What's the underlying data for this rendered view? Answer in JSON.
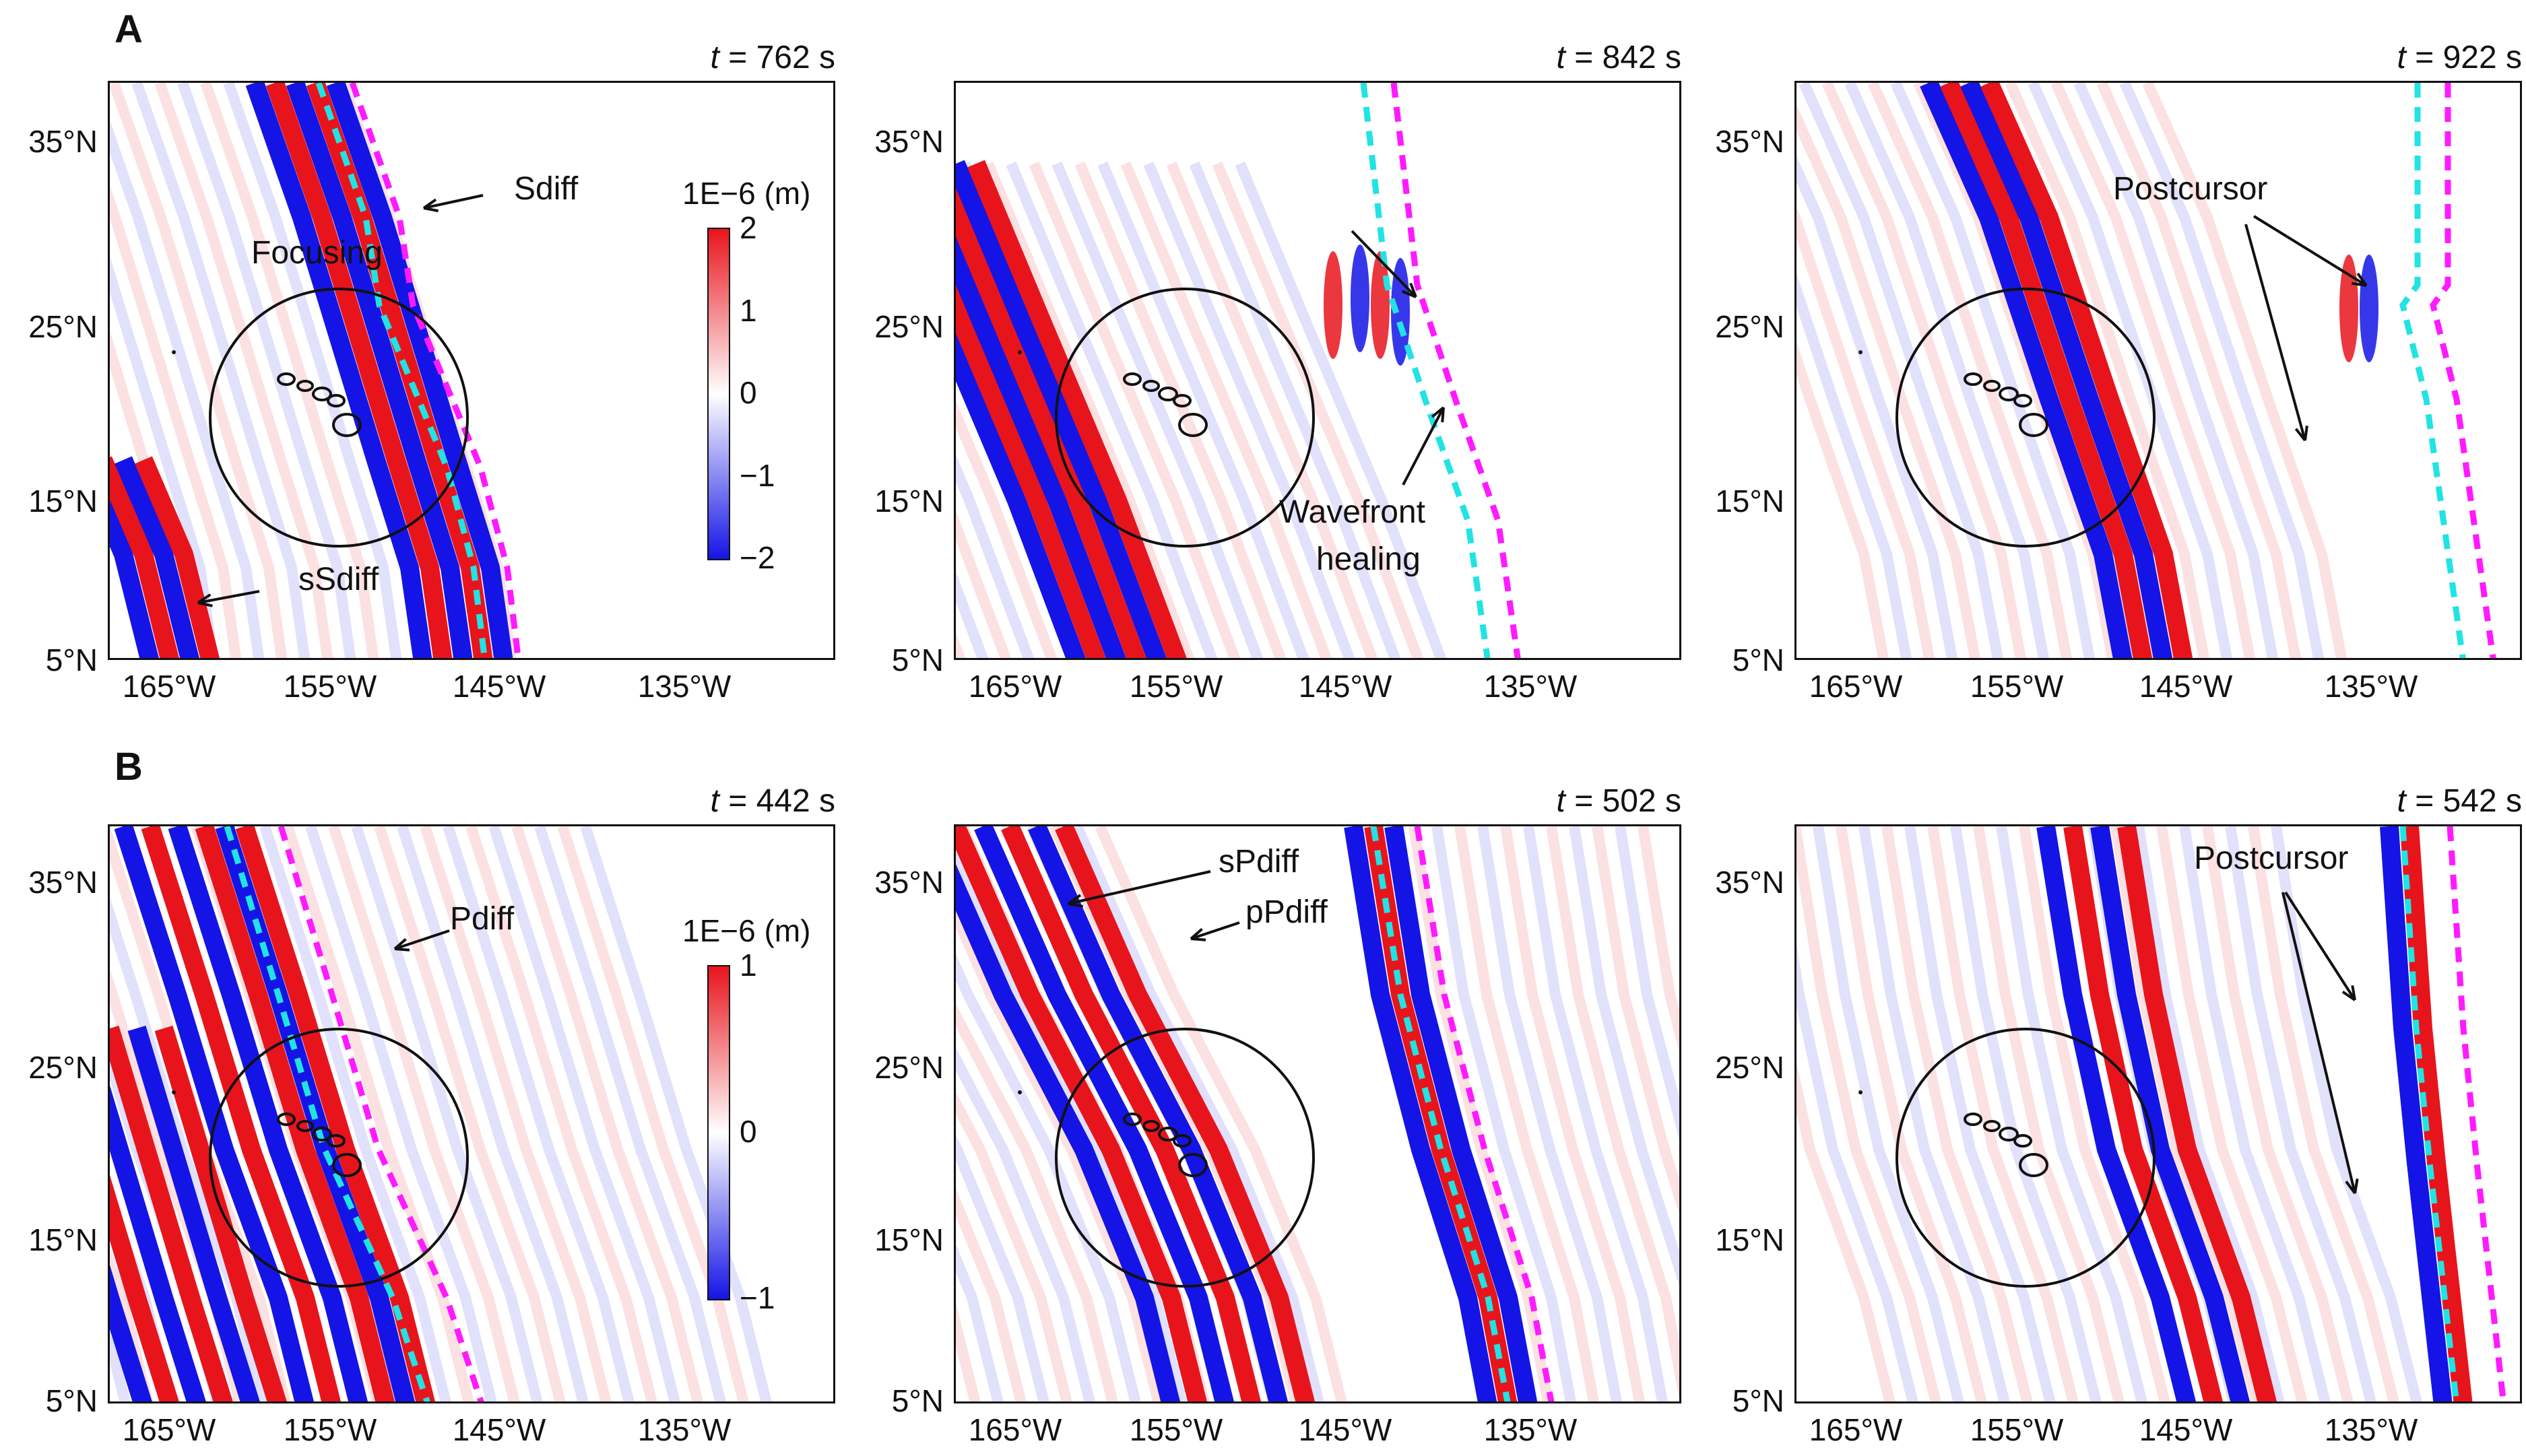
{
  "row_labels": [
    "A",
    "B"
  ],
  "lat_ticks": [
    "35°N",
    "25°N",
    "15°N",
    "5°N"
  ],
  "lon_ticks": [
    "165°W",
    "155°W",
    "145°W",
    "135°W"
  ],
  "colorbar_unit": "1E−6 (m)",
  "colorbar_A_ticks": [
    "2",
    "1",
    "0",
    "−1",
    "−2"
  ],
  "colorbar_B_ticks": [
    "1",
    "0",
    "−1"
  ],
  "colors": {
    "positive": "#e8141c",
    "negative": "#1414e6",
    "cyan": "#22e3e3",
    "magenta": "#ff1aff"
  },
  "panels": [
    {
      "t_var": "t",
      "time": " = 762 s",
      "annotations": [
        "Sdiff",
        "Focusing",
        "sSdiff"
      ]
    },
    {
      "t_var": "t",
      "time": " = 842 s",
      "annotations": [
        "Wavefront",
        "healing"
      ]
    },
    {
      "t_var": "t",
      "time": " = 922 s",
      "annotations": [
        "Postcursor"
      ]
    },
    {
      "t_var": "t",
      "time": " = 442 s",
      "annotations": [
        "Pdiff"
      ]
    },
    {
      "t_var": "t",
      "time": " = 502 s",
      "annotations": [
        "sPdiff",
        "pPdiff"
      ]
    },
    {
      "t_var": "t",
      "time": " = 542 s",
      "annotations": [
        "Postcursor"
      ]
    }
  ]
}
